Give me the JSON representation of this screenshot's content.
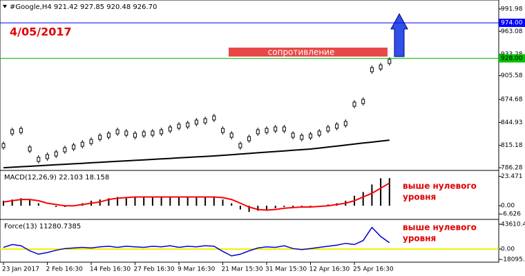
{
  "chart_data": [
    {
      "type": "price",
      "title": "#Google,H4  921.42 927.85 920.48 926.70",
      "annotations": [
        "4/05/2017",
        "сопротивление"
      ],
      "categories": [
        "23 Jan 2017",
        null,
        null,
        null,
        null,
        "2 Feb 16:30",
        null,
        null,
        null,
        null,
        "14 Feb 16:30",
        null,
        null,
        null,
        null,
        "27 Feb 16:30",
        null,
        null,
        null,
        null,
        "9 Mar 16:30",
        null,
        null,
        null,
        null,
        "21 Mar 15:30",
        null,
        null,
        null,
        null,
        "31 Mar 15:30",
        null,
        null,
        null,
        null,
        "12 Apr 16:30",
        null,
        null,
        null,
        null,
        "25 Apr 16:30",
        null,
        null,
        null,
        null
      ],
      "values": [
        814.9,
        832.8,
        834.5,
        810.4,
        797.0,
        800.6,
        804.1,
        809.5,
        813.1,
        816.6,
        820.2,
        825.6,
        828.3,
        832.8,
        831.0,
        828.3,
        830.1,
        831.0,
        832.8,
        836.4,
        840.0,
        841.7,
        845.3,
        847.1,
        850.7,
        834.5,
        828.3,
        814.9,
        823.8,
        832.8,
        834.5,
        836.4,
        836.4,
        828.3,
        825.6,
        827.4,
        831.0,
        836.4,
        840.0,
        843.5,
        868.5,
        872.1,
        913.3,
        916.8,
        924.0
      ],
      "color": "#000000",
      "series": [
        {
          "color": "#ffffff",
          "values": [
            null,
            805.9,
            806.8,
            807.7,
            807.7,
            807.7,
            809.5,
            811.3,
            813.1,
            814.9,
            817.6,
            820.2,
            822.9,
            824.7,
            826.5,
            827.4,
            828.3,
            830.1,
            831.9,
            833.7,
            835.4,
            837.2,
            839.0,
            841.7,
            844.4,
            845.3,
            842.6,
            839.0,
            835.4,
            833.7,
            832.8,
            831.9,
            831.9,
            831.0,
            831.0,
            831.0,
            831.9,
            833.7,
            836.4,
            840.8,
            850.7,
            857.8,
            866.8,
            875.7,
            883.7
          ]
        },
        {
          "color": "#000000",
          "values": [
            786.2,
            786.8,
            787.5,
            788.1,
            788.8,
            789.4,
            790.0,
            790.7,
            791.3,
            791.9,
            792.6,
            793.2,
            793.9,
            794.5,
            795.1,
            795.8,
            796.4,
            797.0,
            797.7,
            798.3,
            799.0,
            799.6,
            800.2,
            800.9,
            801.5,
            802.3,
            803.1,
            803.9,
            804.7,
            805.6,
            806.4,
            807.2,
            808.0,
            808.8,
            809.6,
            810.4,
            811.7,
            813.0,
            814.3,
            815.6,
            816.9,
            818.2,
            819.4,
            820.7,
            822.0
          ]
        }
      ],
      "levels": [
        {
          "value": 974,
          "label": "974.00",
          "color": "#0000ff"
        },
        {
          "value": 928,
          "label": "928.00",
          "color": "#00c000"
        }
      ],
      "ylim": [
        783.6,
        1002.7
      ],
      "yticks": [
        991.98,
        963.08,
        933.28,
        905.58,
        874.68,
        844.93,
        815.18,
        786.28
      ]
    },
    {
      "type": "macd",
      "title": "MACD(12,26,9) 22.103 18.158",
      "annotations": [
        "выше нулевого",
        "уровня"
      ],
      "values": [
        4,
        5,
        6,
        5,
        2,
        0,
        -1,
        -1,
        0,
        2,
        4,
        5,
        6,
        7,
        7,
        7,
        7,
        7,
        7,
        7,
        7,
        7,
        7,
        7,
        7,
        5,
        2,
        -3,
        -5,
        -4,
        -3,
        -2,
        -1,
        -1,
        -1,
        -1,
        0,
        1,
        2,
        4,
        8,
        11,
        17,
        22,
        22.103
      ],
      "color": "#000000",
      "series": [
        {
          "color": "#ff0000",
          "values": [
            3,
            4,
            5,
            5,
            4,
            2,
            1,
            0,
            0,
            1,
            2,
            3,
            5,
            6,
            6.5,
            7,
            7,
            7,
            7,
            7,
            7,
            7,
            7,
            7,
            7,
            6.5,
            5,
            2,
            -1,
            -3,
            -3.5,
            -3,
            -2,
            -1.5,
            -1,
            -1,
            -0.5,
            0,
            1,
            2,
            4,
            7,
            10,
            14,
            18.158
          ]
        }
      ],
      "ylim": [
        -10.4,
        27.7
      ],
      "yticks": [
        23.471,
        {
          "value": 0,
          "label": "0.00"
        },
        -6.626
      ]
    },
    {
      "type": "force",
      "title": "Force(13) 11280.7385",
      "annotations": [
        "выше нулевого",
        "уровня"
      ],
      "color": "#0000cc",
      "values": [
        3000,
        8000,
        6000,
        -3000,
        -9000,
        -6000,
        -2000,
        1000,
        2000,
        3000,
        2000,
        4000,
        5000,
        3000,
        5000,
        4000,
        3000,
        5000,
        4000,
        6000,
        3000,
        5000,
        4000,
        6000,
        5000,
        -4000,
        -12000,
        -9000,
        -3000,
        2000,
        4000,
        3000,
        6000,
        1000,
        -1000,
        1000,
        3000,
        5000,
        7000,
        10000,
        8000,
        15000,
        38000,
        22000,
        11280.7385
      ],
      "ylim": [
        -21800,
        50880
      ],
      "yticks": [
        43610.48,
        {
          "value": 0,
          "label": "0.00"
        },
        -18095.1
      ]
    }
  ]
}
